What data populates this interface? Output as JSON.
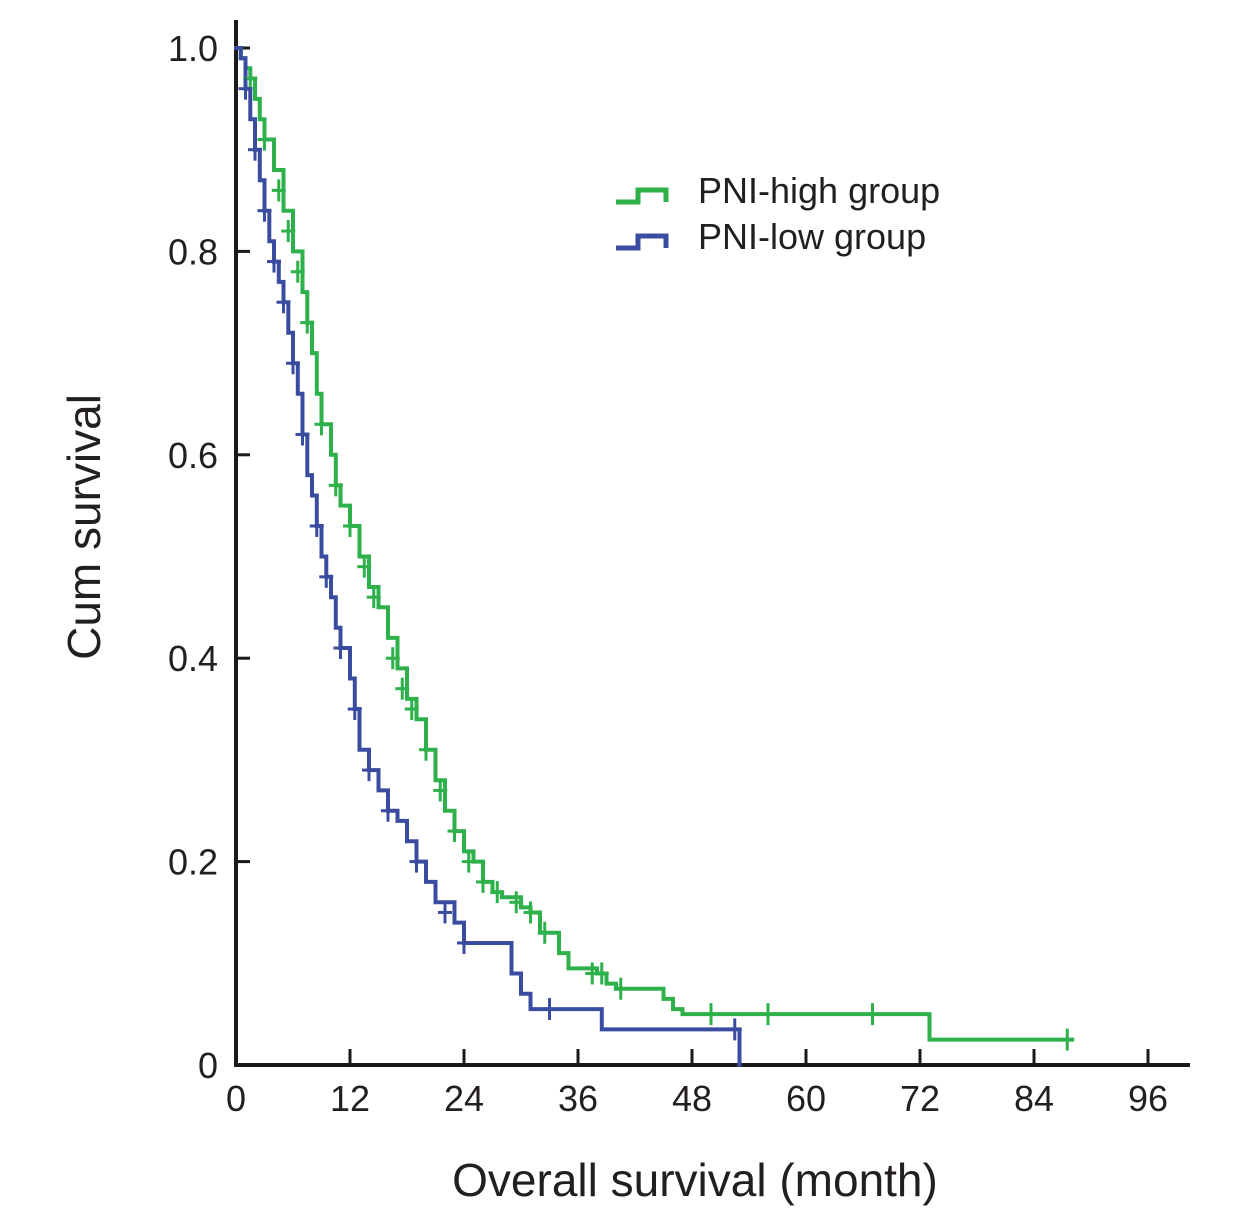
{
  "chart_data": {
    "type": "line",
    "subtype": "kaplan-meier step curve with censor marks",
    "title": "",
    "xlabel": "Overall survival (month)",
    "ylabel": "Cum survival",
    "xlim": [
      0,
      100
    ],
    "ylim": [
      0,
      1.0
    ],
    "x_ticks": [
      0,
      12,
      24,
      36,
      48,
      60,
      72,
      84,
      96
    ],
    "y_ticks": [
      0,
      0.2,
      0.4,
      0.6,
      0.8,
      1.0
    ],
    "x_tick_labels": [
      "0",
      "12",
      "24",
      "36",
      "48",
      "60",
      "72",
      "84",
      "96"
    ],
    "y_tick_labels": [
      "0",
      "0.2",
      "0.4",
      "0.6",
      "0.8",
      "1.0"
    ],
    "grid": false,
    "legend_position": "top-right",
    "series": [
      {
        "name": "PNI-high group",
        "color": "#2eb04a",
        "points": [
          [
            0,
            1.0
          ],
          [
            0.5,
            0.99
          ],
          [
            1,
            0.98
          ],
          [
            1.5,
            0.97
          ],
          [
            2,
            0.95
          ],
          [
            2.5,
            0.93
          ],
          [
            3,
            0.91
          ],
          [
            4,
            0.88
          ],
          [
            5,
            0.84
          ],
          [
            6,
            0.8
          ],
          [
            7,
            0.76
          ],
          [
            7.5,
            0.73
          ],
          [
            8,
            0.7
          ],
          [
            8.5,
            0.66
          ],
          [
            9,
            0.63
          ],
          [
            10,
            0.6
          ],
          [
            10.5,
            0.57
          ],
          [
            11,
            0.55
          ],
          [
            12,
            0.53
          ],
          [
            13,
            0.5
          ],
          [
            14,
            0.47
          ],
          [
            15,
            0.45
          ],
          [
            16,
            0.42
          ],
          [
            17,
            0.39
          ],
          [
            18,
            0.36
          ],
          [
            19,
            0.34
          ],
          [
            20,
            0.31
          ],
          [
            21,
            0.28
          ],
          [
            22,
            0.25
          ],
          [
            23,
            0.23
          ],
          [
            24,
            0.21
          ],
          [
            25,
            0.2
          ],
          [
            26,
            0.18
          ],
          [
            27,
            0.17
          ],
          [
            28,
            0.165
          ],
          [
            30,
            0.155
          ],
          [
            31,
            0.15
          ],
          [
            32,
            0.13
          ],
          [
            34,
            0.11
          ],
          [
            35,
            0.095
          ],
          [
            38,
            0.09
          ],
          [
            39,
            0.08
          ],
          [
            40,
            0.075
          ],
          [
            45,
            0.065
          ],
          [
            46,
            0.055
          ],
          [
            47,
            0.05
          ],
          [
            72.5,
            0.05
          ],
          [
            73,
            0.025
          ],
          [
            88,
            0.025
          ]
        ],
        "censored": [
          [
            1.5,
            0.97
          ],
          [
            3,
            0.91
          ],
          [
            4.5,
            0.86
          ],
          [
            5.5,
            0.82
          ],
          [
            6.5,
            0.78
          ],
          [
            7.5,
            0.73
          ],
          [
            9,
            0.63
          ],
          [
            10.5,
            0.57
          ],
          [
            12,
            0.53
          ],
          [
            13.5,
            0.49
          ],
          [
            14.5,
            0.46
          ],
          [
            16.5,
            0.4
          ],
          [
            17.5,
            0.37
          ],
          [
            18.5,
            0.35
          ],
          [
            20,
            0.31
          ],
          [
            21.5,
            0.27
          ],
          [
            23,
            0.23
          ],
          [
            24.5,
            0.2
          ],
          [
            26,
            0.18
          ],
          [
            27.5,
            0.17
          ],
          [
            29.5,
            0.16
          ],
          [
            31,
            0.15
          ],
          [
            32.5,
            0.13
          ],
          [
            37.5,
            0.09
          ],
          [
            38.5,
            0.09
          ],
          [
            40.5,
            0.075
          ],
          [
            50,
            0.05
          ],
          [
            56,
            0.05
          ],
          [
            67,
            0.05
          ],
          [
            87.5,
            0.025
          ]
        ]
      },
      {
        "name": "PNI-low group",
        "color": "#3a4ca0",
        "points": [
          [
            0,
            1.0
          ],
          [
            0.5,
            0.99
          ],
          [
            1,
            0.96
          ],
          [
            1.5,
            0.93
          ],
          [
            2,
            0.9
          ],
          [
            2.5,
            0.87
          ],
          [
            3,
            0.84
          ],
          [
            3.5,
            0.81
          ],
          [
            4,
            0.79
          ],
          [
            4.5,
            0.77
          ],
          [
            5,
            0.75
          ],
          [
            5.5,
            0.72
          ],
          [
            6,
            0.69
          ],
          [
            6.5,
            0.66
          ],
          [
            7,
            0.62
          ],
          [
            7.5,
            0.58
          ],
          [
            8,
            0.56
          ],
          [
            8.5,
            0.53
          ],
          [
            9,
            0.5
          ],
          [
            9.5,
            0.48
          ],
          [
            10,
            0.46
          ],
          [
            10.5,
            0.43
          ],
          [
            11,
            0.41
          ],
          [
            12,
            0.38
          ],
          [
            12.5,
            0.35
          ],
          [
            13,
            0.31
          ],
          [
            14,
            0.29
          ],
          [
            15,
            0.27
          ],
          [
            16,
            0.25
          ],
          [
            17,
            0.24
          ],
          [
            18,
            0.22
          ],
          [
            19,
            0.2
          ],
          [
            20,
            0.18
          ],
          [
            21,
            0.16
          ],
          [
            23,
            0.14
          ],
          [
            24,
            0.12
          ],
          [
            28,
            0.12
          ],
          [
            29,
            0.09
          ],
          [
            30,
            0.07
          ],
          [
            31,
            0.055
          ],
          [
            38,
            0.055
          ],
          [
            38.5,
            0.035
          ],
          [
            53,
            0.035
          ],
          [
            53,
            0.0
          ]
        ],
        "censored": [
          [
            1,
            0.96
          ],
          [
            2,
            0.9
          ],
          [
            3,
            0.84
          ],
          [
            4,
            0.79
          ],
          [
            5,
            0.75
          ],
          [
            6,
            0.69
          ],
          [
            7,
            0.62
          ],
          [
            8.5,
            0.53
          ],
          [
            9.5,
            0.48
          ],
          [
            11,
            0.41
          ],
          [
            12.5,
            0.35
          ],
          [
            14,
            0.29
          ],
          [
            16,
            0.25
          ],
          [
            19,
            0.2
          ],
          [
            22,
            0.15
          ],
          [
            24,
            0.12
          ],
          [
            33,
            0.055
          ],
          [
            52.5,
            0.035
          ]
        ]
      }
    ]
  }
}
